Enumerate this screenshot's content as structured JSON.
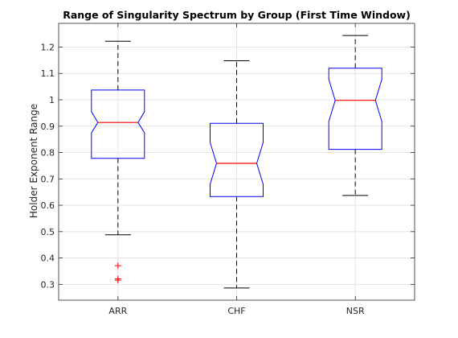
{
  "chart_data": {
    "type": "boxplot",
    "notched": true,
    "title": "Range of Singularity Spectrum by Group (First Time Window)",
    "xlabel": "",
    "ylabel": "Holder Exponent Range",
    "ylim": [
      0.24,
      1.29
    ],
    "yticks": [
      0.3,
      0.4,
      0.5,
      0.6,
      0.7,
      0.8,
      0.9,
      1,
      1.1,
      1.2
    ],
    "ytick_labels": [
      "0.3",
      "0.4",
      "0.5",
      "0.6",
      "0.7",
      "0.8",
      "0.9",
      "1",
      "1.1",
      "1.2"
    ],
    "grid": true,
    "categories": [
      "ARR",
      "CHF",
      "NSR"
    ],
    "boxes": [
      {
        "name": "ARR",
        "whisker_low": 0.488,
        "q1": 0.778,
        "median": 0.914,
        "q3": 1.037,
        "whisker_high": 1.222,
        "notch_low": 0.875,
        "notch_high": 0.955,
        "outliers": [
          0.371,
          0.321,
          0.316
        ]
      },
      {
        "name": "CHF",
        "whisker_low": 0.286,
        "q1": 0.633,
        "median": 0.759,
        "q3": 0.911,
        "whisker_high": 1.148,
        "notch_low": 0.68,
        "notch_high": 0.838,
        "outliers": []
      },
      {
        "name": "NSR",
        "whisker_low": 0.637,
        "q1": 0.812,
        "median": 0.998,
        "q3": 1.12,
        "whisker_high": 1.244,
        "notch_low": 0.918,
        "notch_high": 1.078,
        "outliers": []
      }
    ],
    "colors": {
      "box": "#0000ff",
      "median": "#ff0000",
      "whisker": "#000000",
      "outlier": "#ff0000",
      "grid": "#dfdfdf",
      "axis": "#262626"
    }
  }
}
